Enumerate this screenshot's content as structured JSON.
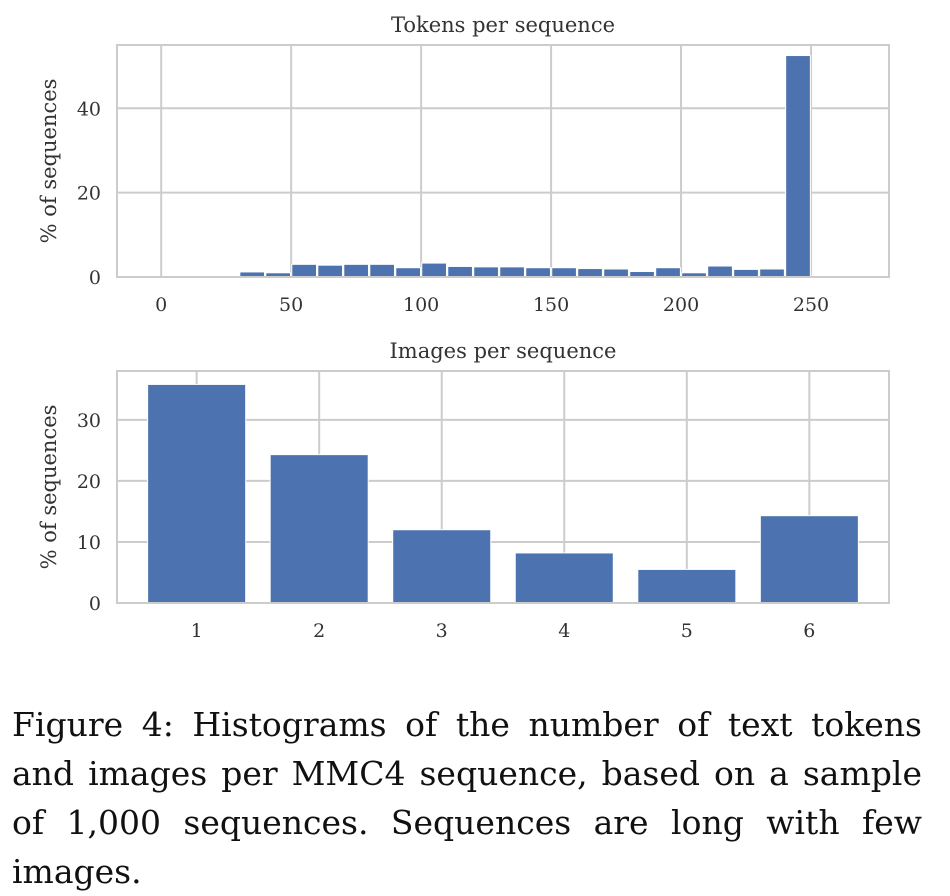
{
  "chart_data": [
    {
      "type": "bar",
      "title": "Tokens per sequence",
      "xlabel": "",
      "ylabel": "% of sequences",
      "xlim": [
        -17,
        280
      ],
      "ylim": [
        0,
        55
      ],
      "xticks": [
        0,
        50,
        100,
        150,
        200,
        250
      ],
      "yticks": [
        0,
        20,
        40
      ],
      "grid": true,
      "bar_width": 9.5,
      "x": [
        35,
        45,
        55,
        65,
        75,
        85,
        95,
        105,
        115,
        125,
        135,
        145,
        155,
        165,
        175,
        185,
        195,
        205,
        215,
        225,
        235,
        245,
        255
      ],
      "values": [
        1.2,
        1.0,
        3.0,
        2.8,
        3.0,
        3.0,
        2.2,
        3.3,
        2.5,
        2.4,
        2.4,
        2.2,
        2.2,
        2.0,
        1.9,
        1.3,
        2.2,
        1.0,
        2.6,
        1.8,
        1.9,
        52.5,
        0.3
      ],
      "color": "#4c72b0"
    },
    {
      "type": "bar",
      "title": "Images per sequence",
      "xlabel": "",
      "ylabel": "% of sequences",
      "xlim": [
        0.35,
        6.65
      ],
      "ylim": [
        0,
        38
      ],
      "xticks": [
        1,
        2,
        3,
        4,
        5,
        6
      ],
      "yticks": [
        0,
        10,
        20,
        30
      ],
      "grid": true,
      "bar_width": 0.8,
      "x": [
        1,
        2,
        3,
        4,
        5,
        6
      ],
      "values": [
        35.8,
        24.3,
        12.0,
        8.2,
        5.5,
        14.3
      ],
      "color": "#4c72b0"
    }
  ],
  "caption": "Figure 4: Histograms of the number of text tokens and images per MMC4 sequence, based on a sample of 1,000 sequences. Sequences are long with few images."
}
